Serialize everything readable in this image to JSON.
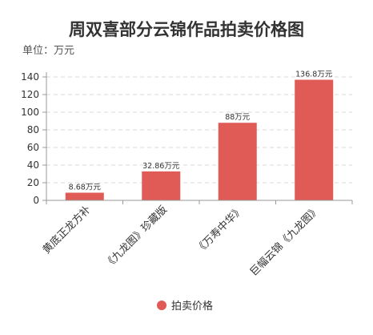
{
  "chart_data": {
    "type": "bar",
    "title": "周双喜部分云锦作品拍卖价格图",
    "unit_label": "单位：万元",
    "categories": [
      "黄底正龙方补",
      "《九龙图》珍藏版",
      "《万寿中华》",
      "巨幅云锦《九龙图》"
    ],
    "series": [
      {
        "name": "拍卖价格",
        "values": [
          8.68,
          32.86,
          88,
          136.8
        ],
        "data_labels": [
          "8.68万元",
          "32.86万元",
          "88万元",
          "136.8万元"
        ],
        "color": "#e05a56"
      }
    ],
    "ylim": [
      0,
      140
    ],
    "yticks": [
      "0",
      "20",
      "40",
      "60",
      "80",
      "100",
      "120",
      "140"
    ],
    "grid": true,
    "legend_position": "bottom-center"
  }
}
